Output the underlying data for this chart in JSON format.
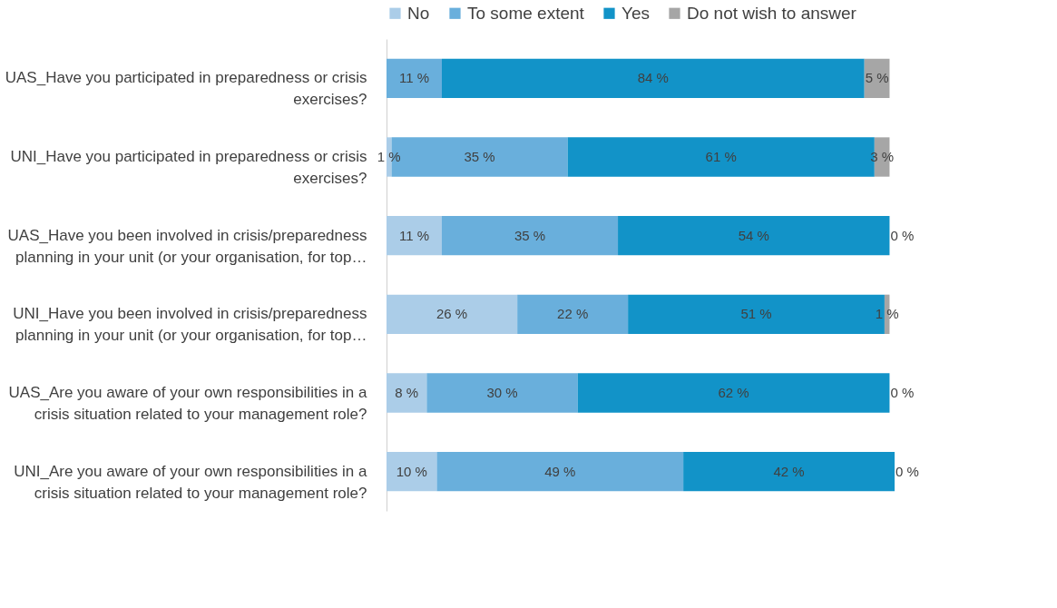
{
  "chart_data": {
    "type": "bar",
    "orientation": "horizontal",
    "stacked": true,
    "legend": "top",
    "categories": [
      "UAS_Have you participated in preparedness or crisis exercises?",
      "UNI_Have you participated in preparedness or crisis exercises?",
      "UAS_Have you been involved in crisis/preparedness planning in your unit (or your organisation, for top…",
      "UNI_Have you been involved in crisis/preparedness planning in your unit (or your organisation, for top…",
      "UAS_Are you aware of your own responsibilities in a crisis situation related to your management role?",
      "UNI_Are you aware of your own responsibilities in a crisis situation related to your management role?"
    ],
    "series": [
      {
        "name": "No",
        "color": "#abcde8",
        "values": [
          0,
          1,
          11,
          26,
          8,
          10
        ],
        "value_labels": [
          null,
          "1 %",
          "11 %",
          "26 %",
          "8 %",
          "10 %"
        ]
      },
      {
        "name": "To some extent",
        "color": "#69afdc",
        "values": [
          11,
          35,
          35,
          22,
          30,
          49
        ],
        "value_labels": [
          "11 %",
          "35 %",
          "35 %",
          "22 %",
          "30 %",
          "49 %"
        ]
      },
      {
        "name": "Yes",
        "color": "#1293c8",
        "values": [
          84,
          61,
          54,
          51,
          62,
          42
        ],
        "value_labels": [
          "84 %",
          "61 %",
          "54 %",
          "51 %",
          "62 %",
          "42 %"
        ]
      },
      {
        "name": "Do not wish to answer",
        "color": "#a6a6a6",
        "values": [
          5,
          3,
          0,
          1,
          0,
          0
        ],
        "value_labels": [
          "5 %",
          "3 %",
          "0 %",
          "1 %",
          "0 %",
          "0 %"
        ]
      }
    ]
  }
}
